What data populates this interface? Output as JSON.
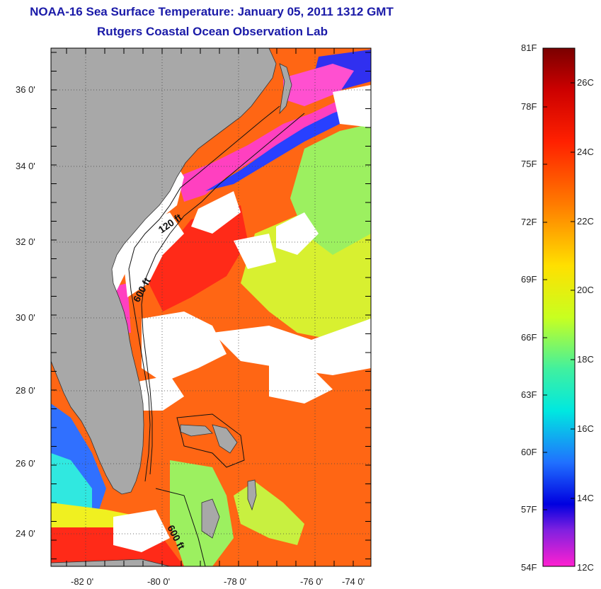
{
  "header": {
    "title": "NOAA-16 Sea Surface Temperature:  January 05, 2011 1312 GMT",
    "subtitle": "Rutgers Coastal Ocean Observation Lab"
  },
  "map": {
    "lat_labels": [
      "36 0'",
      "34 0'",
      "32 0'",
      "30 0'",
      "28 0'",
      "26 0'",
      "24 0'"
    ],
    "lon_labels": [
      "-82 0'",
      "-80 0'",
      "-78 0'",
      "-76 0'",
      "-74 0'"
    ],
    "isobaths": [
      {
        "label": "120 ft"
      },
      {
        "label": "600 ft"
      },
      {
        "label": "600 ft"
      }
    ],
    "colors": {
      "land": "#a8a8a8",
      "cloud": "#ffffff",
      "warm": "#ff5a10",
      "hot": "#ff1a1a",
      "mild": "#f8f020",
      "cool": "#40e8a0",
      "cold": "#2040ff",
      "coldest": "#ff40c0"
    }
  },
  "colorbar": {
    "fahrenheit": [
      "81F",
      "78F",
      "75F",
      "72F",
      "69F",
      "66F",
      "63F",
      "60F",
      "57F",
      "54F"
    ],
    "celsius": [
      "26C",
      "24C",
      "22C",
      "20C",
      "18C",
      "16C",
      "14C",
      "12C"
    ]
  }
}
